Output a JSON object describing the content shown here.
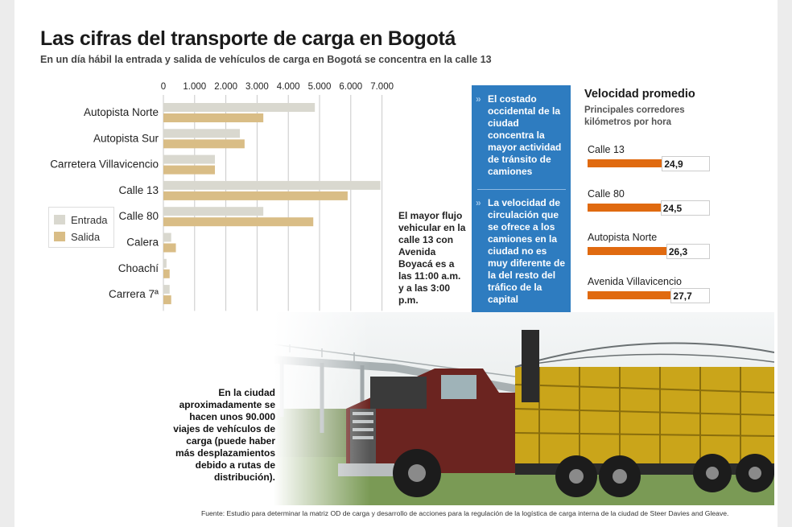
{
  "title": "Las cifras del transporte de carga en Bogotá",
  "subtitle": "En un día hábil la entrada y salida de vehículos de carga en Bogotá se concentra en la calle 13",
  "chart_data": [
    {
      "type": "bar",
      "orientation": "horizontal",
      "categories": [
        "Autopista Norte",
        "Autopista Sur",
        "Carretera Villavicencio",
        "Calle 13",
        "Calle 80",
        "Calera",
        "Choachí",
        "Carrera 7ª"
      ],
      "series": [
        {
          "name": "Entrada",
          "color": "#d9d8cf",
          "values": [
            4850,
            2450,
            1650,
            6950,
            3200,
            250,
            100,
            200
          ]
        },
        {
          "name": "Salida",
          "color": "#d9bd86",
          "values": [
            3200,
            2600,
            1650,
            5900,
            4800,
            400,
            200,
            250
          ]
        }
      ],
      "xticks": [
        "0",
        "1.000",
        "2.000",
        "3.000",
        "4.000",
        "5.000",
        "6.000",
        "7.000"
      ],
      "xlim": [
        0,
        7000
      ],
      "grid": true,
      "legend_position": "left"
    },
    {
      "type": "bar",
      "orientation": "horizontal",
      "title": "Velocidad promedio",
      "subtitle": "Principales corredores kilómetros por hora",
      "categories": [
        "Calle 13",
        "Calle 80",
        "Autopista Norte",
        "Avenida Villavicencio"
      ],
      "values": [
        24.9,
        24.5,
        26.3,
        27.7
      ],
      "value_labels": [
        "24,9",
        "24,5",
        "26,3",
        "27,7"
      ],
      "color": "#e06a10"
    }
  ],
  "note": "El mayor flujo vehicular en la calle 13 con Avenida Boyacá es a las 11:00 a.m. y a las 3:00 p.m.",
  "highlights": [
    "El costado occidental de la ciudad concentra la mayor actividad de tránsito de camiones",
    "La velocidad de circulación que se ofrece a los camiones en la ciudad no es muy diferente de la del resto del tráfico de la capital"
  ],
  "photo_caption": "En la ciudad aproximadamente se hacen unos 90.000 viajes de vehículos de carga (puede haber más desplazamientos debido a rutas de distribución).",
  "source": "Fuente: Estudio para determinar la matriz OD de carga y desarrollo de acciones para la regulación de la logística de carga interna de la ciudad de Steer Davies and Gleave."
}
